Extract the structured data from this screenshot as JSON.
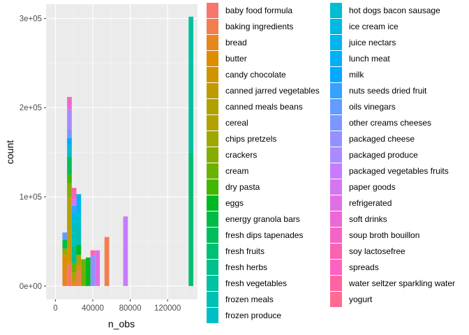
{
  "chart_data": {
    "type": "bar",
    "stacked": true,
    "xlabel": "n_obs",
    "ylabel": "count",
    "xlim": [
      -10000,
      152000
    ],
    "ylim": [
      -15000,
      316000
    ],
    "x_ticks": [
      0,
      40000,
      80000,
      120000
    ],
    "x_tick_labels": [
      "0",
      "40000",
      "80000",
      "120000"
    ],
    "y_ticks": [
      0,
      100000,
      200000,
      300000
    ],
    "y_tick_labels": [
      "0e+00",
      "1e+05",
      "2e+05",
      "3e+05"
    ],
    "bin_width": 5000,
    "grid": true,
    "legend_position": "right",
    "series": [
      {
        "name": "baby food formula",
        "color": "#F8766D",
        "bars": [
          {
            "x": 15000,
            "value": 25000
          }
        ]
      },
      {
        "name": "baking ingredients",
        "color": "#F17D51",
        "bars": [
          {
            "x": 25000,
            "value": 17000
          },
          {
            "x": 55000,
            "value": 55000
          }
        ]
      },
      {
        "name": "bread",
        "color": "#E7851E",
        "bars": [
          {
            "x": 10000,
            "value": 20000
          },
          {
            "x": 20000,
            "value": 5000
          },
          {
            "x": 25000,
            "value": 6000
          }
        ]
      },
      {
        "name": "butter",
        "color": "#DC8D00",
        "bars": [
          {
            "x": 10000,
            "value": 15000
          }
        ]
      },
      {
        "name": "candy chocolate",
        "color": "#CF9400",
        "bars": [
          {
            "x": 15000,
            "value": 17000
          }
        ]
      },
      {
        "name": "canned jarred vegetables",
        "color": "#C09B00",
        "bars": [
          {
            "x": 15000,
            "value": 20000
          }
        ]
      },
      {
        "name": "canned meals beans",
        "color": "#AFA100",
        "bars": [
          {
            "x": 15000,
            "value": 20000
          },
          {
            "x": 25000,
            "value": 12000
          }
        ]
      },
      {
        "name": "cereal",
        "color": "#B2A100",
        "bars": [
          {
            "x": 15000,
            "value": 18000
          },
          {
            "x": 20000,
            "value": 10000
          }
        ]
      },
      {
        "name": "chips pretzels",
        "color": "#9CA700",
        "bars": [
          {
            "x": 10000,
            "value": 7000
          }
        ]
      },
      {
        "name": "crackers",
        "color": "#86AC00",
        "bars": [
          {
            "x": 15000,
            "value": 15000
          }
        ]
      },
      {
        "name": "cream",
        "color": "#6BB100",
        "bars": [
          {
            "x": 20000,
            "value": 10000
          },
          {
            "x": 30000,
            "value": 30000
          }
        ]
      },
      {
        "name": "dry pasta",
        "color": "#44B500",
        "bars": [
          {
            "x": 15000,
            "value": 10000
          }
        ]
      },
      {
        "name": "eggs",
        "color": "#00B81F",
        "bars": [
          {
            "x": 25000,
            "value": 11000
          },
          {
            "x": 35000,
            "value": 32000
          }
        ]
      },
      {
        "name": "energy granola bars",
        "color": "#00BB45",
        "bars": [
          {
            "x": 10000,
            "value": 10000
          }
        ]
      },
      {
        "name": "fresh dips tapenades",
        "color": "#00BD5C",
        "bars": [
          {
            "x": 15000,
            "value": 20000
          }
        ]
      },
      {
        "name": "fresh fruits",
        "color": "#00BF74",
        "bars": [
          {
            "x": 145000,
            "value": 150000
          }
        ]
      },
      {
        "name": "fresh herbs",
        "color": "#00C08B",
        "bars": [
          {
            "x": 20000,
            "value": 20000
          }
        ]
      },
      {
        "name": "fresh vegetables",
        "color": "#00C1A0",
        "bars": [
          {
            "x": 145000,
            "value": 152000
          }
        ]
      },
      {
        "name": "frozen meals",
        "color": "#00C0B4",
        "bars": [
          {
            "x": 20000,
            "value": 15000
          },
          {
            "x": 25000,
            "value": 20000
          }
        ]
      },
      {
        "name": "frozen produce",
        "color": "#00BFC4",
        "bars": [
          {
            "x": 20000,
            "value": 12000
          }
        ]
      },
      {
        "name": "hot dogs bacon sausage",
        "color": "#00BDD5",
        "bars": [
          {
            "x": 15000,
            "value": 13000
          },
          {
            "x": 25000,
            "value": 15000
          }
        ]
      },
      {
        "name": "ice cream ice",
        "color": "#00B9E3",
        "bars": [
          {
            "x": 20000,
            "value": 10000
          }
        ]
      },
      {
        "name": "juice nectars",
        "color": "#00B4F0",
        "bars": [
          {
            "x": 25000,
            "value": 12000
          }
        ]
      },
      {
        "name": "lunch meat",
        "color": "#00B0F6",
        "bars": [
          {
            "x": 25000,
            "value": 10000
          }
        ]
      },
      {
        "name": "milk",
        "color": "#00A9FF",
        "bars": [
          {
            "x": 15000,
            "value": 8000
          }
        ]
      },
      {
        "name": "nuts seeds dried fruit",
        "color": "#35A2FF",
        "bars": [
          {
            "x": 20000,
            "value": 8000
          }
        ]
      },
      {
        "name": "oils vinegars",
        "color": "#619CFF",
        "bars": [
          {
            "x": 10000,
            "value": 8000
          }
        ]
      },
      {
        "name": "other creams cheeses",
        "color": "#7C96FF",
        "bars": [
          {
            "x": 15000,
            "value": 10000
          }
        ]
      },
      {
        "name": "packaged cheese",
        "color": "#9590FF",
        "bars": [
          {
            "x": 40000,
            "value": 34000
          }
        ]
      },
      {
        "name": "packaged produce",
        "color": "#A98BFF",
        "bars": [
          {
            "x": 15000,
            "value": 22000
          }
        ]
      },
      {
        "name": "packaged vegetables fruits",
        "color": "#C77CFF",
        "bars": [
          {
            "x": 75000,
            "value": 78000
          }
        ]
      },
      {
        "name": "paper goods",
        "color": "#D675F2",
        "bars": [
          {
            "x": 20000,
            "value": 7000
          }
        ]
      },
      {
        "name": "refrigerated",
        "color": "#E16FE4",
        "bars": [
          {
            "x": 45000,
            "value": 40000
          }
        ]
      },
      {
        "name": "soft drinks",
        "color": "#EC69D5",
        "bars": [
          {
            "x": 15000,
            "value": 12000
          }
        ]
      },
      {
        "name": "soup broth bouillon",
        "color": "#F365C4",
        "bars": [
          {
            "x": 20000,
            "value": 8000
          }
        ]
      },
      {
        "name": "soy lactosefree",
        "color": "#F963B0",
        "bars": [
          {
            "x": 20000,
            "value": 5000
          }
        ]
      },
      {
        "name": "spreads",
        "color": "#FF61C3",
        "bars": [
          {
            "x": 40000,
            "value": 3000
          }
        ]
      },
      {
        "name": "water seltzer sparkling water",
        "color": "#FF63A0",
        "bars": [
          {
            "x": 40000,
            "value": 3000
          }
        ]
      },
      {
        "name": "yogurt",
        "color": "#FF6C91",
        "bars": [
          {
            "x": 15000,
            "value": 2000
          }
        ]
      }
    ]
  }
}
